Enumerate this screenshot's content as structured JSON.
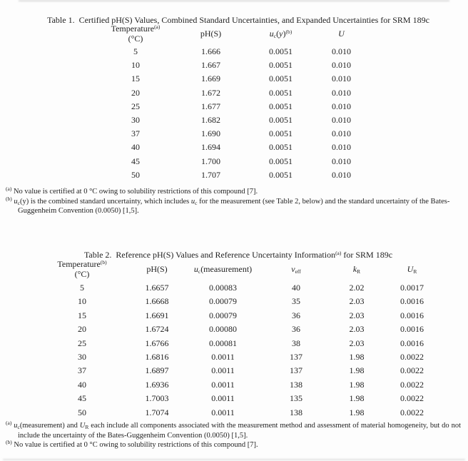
{
  "colors": {
    "text": "#1f1f1f",
    "background": "#fdfdfd"
  },
  "table1": {
    "title": "Table 1.  Certified pH(S) Values, Combined Standard Uncertainties, and Expanded Uncertainties for SRM 189c",
    "headers": {
      "temperature": "Temperature",
      "temperature_sup": "(a)",
      "temperature_unit": "(°C)",
      "ph": "pH(S)",
      "uc_u": "u",
      "uc_sub": "c",
      "uc_open": "(",
      "uc_y": "y",
      "uc_close": ")",
      "uc_sup": "(b)",
      "U": "U"
    },
    "rows": [
      [
        "5",
        "1.666",
        "0.0051",
        "0.010"
      ],
      [
        "10",
        "1.667",
        "0.0051",
        "0.010"
      ],
      [
        "15",
        "1.669",
        "0.0051",
        "0.010"
      ],
      [
        "20",
        "1.672",
        "0.0051",
        "0.010"
      ],
      [
        "25",
        "1.677",
        "0.0051",
        "0.010"
      ],
      [
        "30",
        "1.682",
        "0.0051",
        "0.010"
      ],
      [
        "37",
        "1.690",
        "0.0051",
        "0.010"
      ],
      [
        "40",
        "1.694",
        "0.0051",
        "0.010"
      ],
      [
        "45",
        "1.700",
        "0.0051",
        "0.010"
      ],
      [
        "50",
        "1.707",
        "0.0051",
        "0.010"
      ]
    ],
    "footnotes": {
      "a_marker": "(a)",
      "a_text": "No value is certified at 0 °C owing to solubility restrictions of this compound [7].",
      "b_marker": "(b)",
      "b_u1": "u",
      "b_sub1": "c",
      "b_text1": "(y) is the combined standard uncertainty, which includes ",
      "b_u2": "u",
      "b_sub2": "c",
      "b_text2": " for the measurement (see Table 2, below) and the standard uncertainty of the Bates-Guggenheim Convention (0.0050) [1,5]."
    }
  },
  "table2": {
    "title_pre": "Table 2.  Reference pH(S) Values and Reference Uncertainty Information",
    "title_sup": "(a)",
    "title_post": " for SRM 189c",
    "headers": {
      "temperature": "Temperature",
      "temperature_sup": "(b)",
      "temperature_unit": "(°C)",
      "ph": "pH(S)",
      "uc_u": "u",
      "uc_sub": "c",
      "uc_rest": "(measurement)",
      "nu": "ν",
      "nu_sub": "eff",
      "k": "k",
      "k_sub": "R",
      "U": "U",
      "U_sub": "R"
    },
    "rows": [
      [
        "5",
        "1.6657",
        "0.00083",
        "40",
        "2.02",
        "0.0017"
      ],
      [
        "10",
        "1.6668",
        "0.00079",
        "35",
        "2.03",
        "0.0016"
      ],
      [
        "15",
        "1.6691",
        "0.00079",
        "36",
        "2.03",
        "0.0016"
      ],
      [
        "20",
        "1.6724",
        "0.00080",
        "36",
        "2.03",
        "0.0016"
      ],
      [
        "25",
        "1.6766",
        "0.00081",
        "38",
        "2.03",
        "0.0016"
      ],
      [
        "30",
        "1.6816",
        "0.0011",
        "137",
        "1.98",
        "0.0022"
      ],
      [
        "37",
        "1.6897",
        "0.0011",
        "137",
        "1.98",
        "0.0022"
      ],
      [
        "40",
        "1.6936",
        "0.0011",
        "138",
        "1.98",
        "0.0022"
      ],
      [
        "45",
        "1.7003",
        "0.0011",
        "135",
        "1.98",
        "0.0022"
      ],
      [
        "50",
        "1.7074",
        "0.0011",
        "138",
        "1.98",
        "0.0022"
      ]
    ],
    "footnotes": {
      "a_marker": "(a)",
      "a_u": "u",
      "a_usub": "c",
      "a_text1": "(measurement) and ",
      "a_U": "U",
      "a_Usub": "R",
      "a_text2": " each include all components associated with the measurement method and assessment of material homogeneity, but do not include the uncertainty of the Bates-Guggenheim Convention (0.0050) [1,5].",
      "b_marker": "(b)",
      "b_text": "No value is certified at 0 °C owing to solubility restrictions of this compound [7]."
    }
  }
}
